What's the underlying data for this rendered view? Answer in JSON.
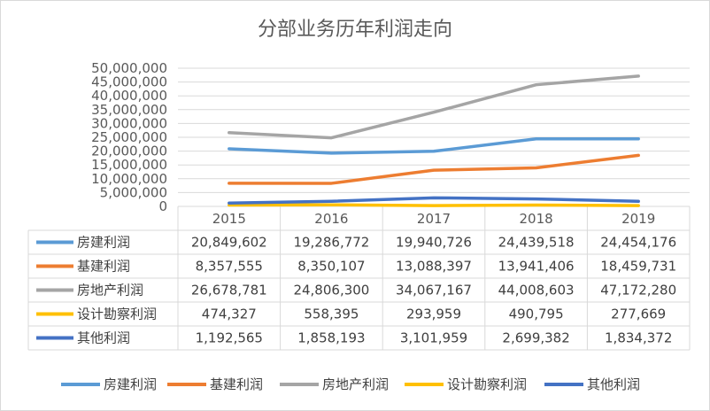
{
  "chart_data": {
    "type": "line",
    "title": "分部业务历年利润走向",
    "categories": [
      "2015",
      "2016",
      "2017",
      "2018",
      "2019"
    ],
    "yticks": [
      "50,000,000",
      "45,000,000",
      "40,000,000",
      "35,000,000",
      "30,000,000",
      "25,000,000",
      "20,000,000",
      "15,000,000",
      "10,000,000",
      "5,000,000",
      "0"
    ],
    "ylim": [
      0,
      50000000
    ],
    "grid": true,
    "legend_position": "bottom",
    "series": [
      {
        "name": "房建利润",
        "color": "#5b9bd5",
        "values": [
          20849602,
          19286772,
          19940726,
          24439518,
          24454176
        ],
        "labels": [
          "20,849,602",
          "19,286,772",
          "19,940,726",
          "24,439,518",
          "24,454,176"
        ]
      },
      {
        "name": "基建利润",
        "color": "#ed7d31",
        "values": [
          8357555,
          8350107,
          13088397,
          13941406,
          18459731
        ],
        "labels": [
          "8,357,555",
          "8,350,107",
          "13,088,397",
          "13,941,406",
          "18,459,731"
        ]
      },
      {
        "name": "房地产利润",
        "color": "#a5a5a5",
        "values": [
          26678781,
          24806300,
          34067167,
          44008603,
          47172280
        ],
        "labels": [
          "26,678,781",
          "24,806,300",
          "34,067,167",
          "44,008,603",
          "47,172,280"
        ]
      },
      {
        "name": "设计勘察利润",
        "color": "#ffc000",
        "values": [
          474327,
          558395,
          293959,
          490795,
          277669
        ],
        "labels": [
          "474,327",
          "558,395",
          "293,959",
          "490,795",
          "277,669"
        ]
      },
      {
        "name": "其他利润",
        "color": "#4472c4",
        "values": [
          1192565,
          1858193,
          3101959,
          2699382,
          1834372
        ],
        "labels": [
          "1,192,565",
          "1,858,193",
          "3,101,959",
          "2,699,382",
          "1,834,372"
        ]
      }
    ]
  }
}
